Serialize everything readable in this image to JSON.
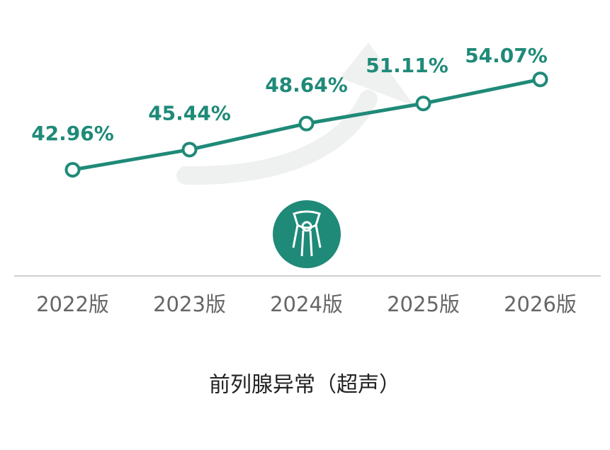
{
  "chart_data": {
    "type": "line",
    "title": "前列腺异常（超声）",
    "categories": [
      "2022版",
      "2023版",
      "2024版",
      "2025版",
      "2026版"
    ],
    "series": [
      {
        "color": "#1f8a78",
        "values": [
          42.96,
          45.44,
          48.64,
          51.11,
          54.07
        ],
        "value_labels": [
          "42.96%",
          "45.44%",
          "48.64%",
          "51.11%",
          "54.07%"
        ]
      }
    ],
    "ylim": [
      30,
      60
    ]
  }
}
